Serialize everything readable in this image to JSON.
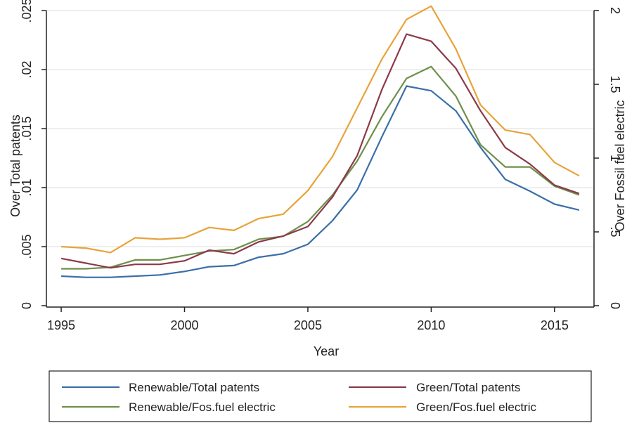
{
  "chart_data": {
    "type": "line",
    "xlabel": "Year",
    "ylabel_left": "Over Total patents",
    "ylabel_right": "Over Fossil fuel electric",
    "x": [
      1995,
      1996,
      1997,
      1998,
      1999,
      2000,
      2001,
      2002,
      2003,
      2004,
      2005,
      2006,
      2007,
      2008,
      2009,
      2010,
      2011,
      2012,
      2013,
      2014,
      2015,
      2016
    ],
    "xlim": [
      1994.4,
      2016.6
    ],
    "xticks": [
      1995,
      2000,
      2005,
      2010,
      2015
    ],
    "xtick_labels": [
      "1995",
      "2000",
      "2005",
      "2010",
      "2015"
    ],
    "ylim_left": [
      0,
      0.025
    ],
    "yticks_left": [
      0,
      0.005,
      0.01,
      0.015,
      0.02,
      0.025
    ],
    "ytick_labels_left": [
      "0",
      ".005",
      ".01",
      ".015",
      ".02",
      ".025"
    ],
    "ylim_right": [
      0,
      2
    ],
    "yticks_right": [
      0,
      0.5,
      1,
      1.5,
      2
    ],
    "ytick_labels_right": [
      "0",
      ".5",
      "1",
      "1.5",
      "2"
    ],
    "grid": true,
    "legend_position": "bottom",
    "series": [
      {
        "name": "Renewable/Total patents",
        "axis": "left",
        "color": "#3a6fa8",
        "values": [
          0.0025,
          0.0024,
          0.0024,
          0.0025,
          0.0026,
          0.0029,
          0.0033,
          0.0034,
          0.0041,
          0.0044,
          0.0052,
          0.0072,
          0.0098,
          0.0143,
          0.0186,
          0.0182,
          0.0165,
          0.0134,
          0.0107,
          0.0097,
          0.0086,
          0.0081
        ]
      },
      {
        "name": "Green/Total patents",
        "axis": "left",
        "color": "#8b3a4a",
        "values": [
          0.004,
          0.0036,
          0.0032,
          0.0035,
          0.0035,
          0.0038,
          0.0047,
          0.0044,
          0.0054,
          0.0059,
          0.0067,
          0.0092,
          0.0127,
          0.0183,
          0.023,
          0.0224,
          0.0201,
          0.0165,
          0.0134,
          0.012,
          0.0102,
          0.0095
        ]
      },
      {
        "name": "Renewable/Fos.fuel electric",
        "axis": "right",
        "color": "#6e8f4a",
        "values": [
          0.25,
          0.25,
          0.26,
          0.31,
          0.31,
          0.34,
          0.37,
          0.38,
          0.45,
          0.47,
          0.57,
          0.75,
          0.98,
          1.28,
          1.54,
          1.62,
          1.42,
          1.09,
          0.94,
          0.94,
          0.81,
          0.75
        ]
      },
      {
        "name": "Green/Fos.fuel electric",
        "axis": "right",
        "color": "#e8a33a",
        "values": [
          0.4,
          0.39,
          0.36,
          0.46,
          0.45,
          0.46,
          0.53,
          0.51,
          0.59,
          0.62,
          0.78,
          1.01,
          1.34,
          1.67,
          1.94,
          2.03,
          1.74,
          1.36,
          1.19,
          1.16,
          0.97,
          0.88
        ]
      }
    ]
  }
}
